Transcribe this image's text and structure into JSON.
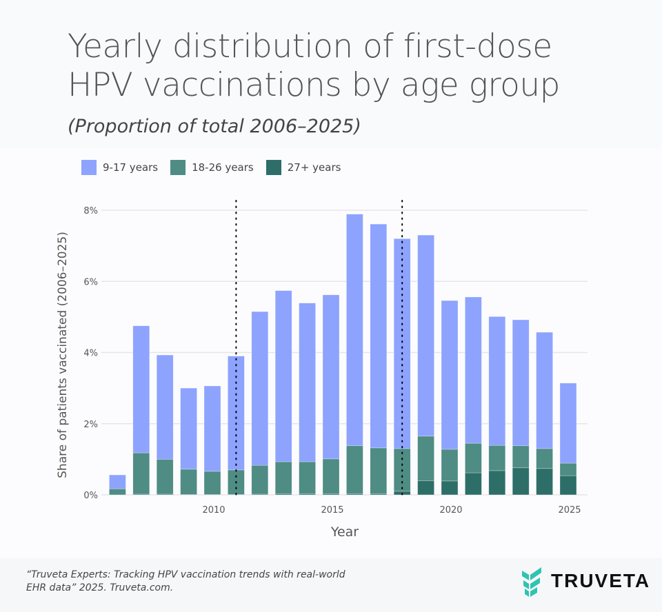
{
  "title_line1": "Yearly distribution of first-dose",
  "title_line2": "HPV vaccinations by age group",
  "subtitle": "(Proportion of total 2006–2025)",
  "footer_line1": "“Truveta Experts: Tracking HPV vaccination trends with real-world",
  "footer_line2": "EHR data” 2025. Truveta.com.",
  "logo": {
    "text": "TRUVETA",
    "color": "#2fc4b2"
  },
  "chart_data": {
    "type": "bar",
    "stacked": true,
    "xlabel": "Year",
    "ylabel": "Share of patients vaccinated (2006–2025)",
    "ylim": [
      0,
      8
    ],
    "yticks": [
      0,
      2,
      4,
      6,
      8
    ],
    "ytick_labels": [
      "0%",
      "2%",
      "4%",
      "6%",
      "8%"
    ],
    "xticks": [
      2010,
      2015,
      2020,
      2025
    ],
    "xtick_labels": [
      "2010",
      "2015",
      "2020",
      "2025"
    ],
    "grid": "horizontal",
    "legend_position": "top-left",
    "reference_lines_x": [
      2011,
      2018
    ],
    "categories": [
      2006,
      2007,
      2008,
      2009,
      2010,
      2011,
      2012,
      2013,
      2014,
      2015,
      2016,
      2017,
      2018,
      2019,
      2020,
      2021,
      2022,
      2023,
      2024,
      2025
    ],
    "series": [
      {
        "name": "27+ years",
        "color": "#2e6e68",
        "values": [
          0,
          0.02,
          0.02,
          0.01,
          0.01,
          0.01,
          0.02,
          0.03,
          0.03,
          0.03,
          0.03,
          0.03,
          0.1,
          0.4,
          0.39,
          0.62,
          0.68,
          0.76,
          0.74,
          0.54
        ]
      },
      {
        "name": "18-26 years",
        "color": "#4e8c84",
        "values": [
          0.17,
          1.16,
          0.98,
          0.71,
          0.65,
          0.69,
          0.81,
          0.9,
          0.9,
          0.98,
          1.35,
          1.29,
          1.2,
          1.25,
          0.89,
          0.83,
          0.71,
          0.62,
          0.56,
          0.35
        ]
      },
      {
        "name": "9-17 years",
        "color": "#8da3fe",
        "values": [
          0.39,
          3.57,
          2.93,
          2.28,
          2.4,
          3.2,
          4.32,
          4.81,
          4.46,
          4.61,
          6.51,
          6.29,
          5.9,
          5.65,
          4.18,
          4.11,
          3.62,
          3.54,
          3.27,
          2.25
        ]
      }
    ]
  }
}
